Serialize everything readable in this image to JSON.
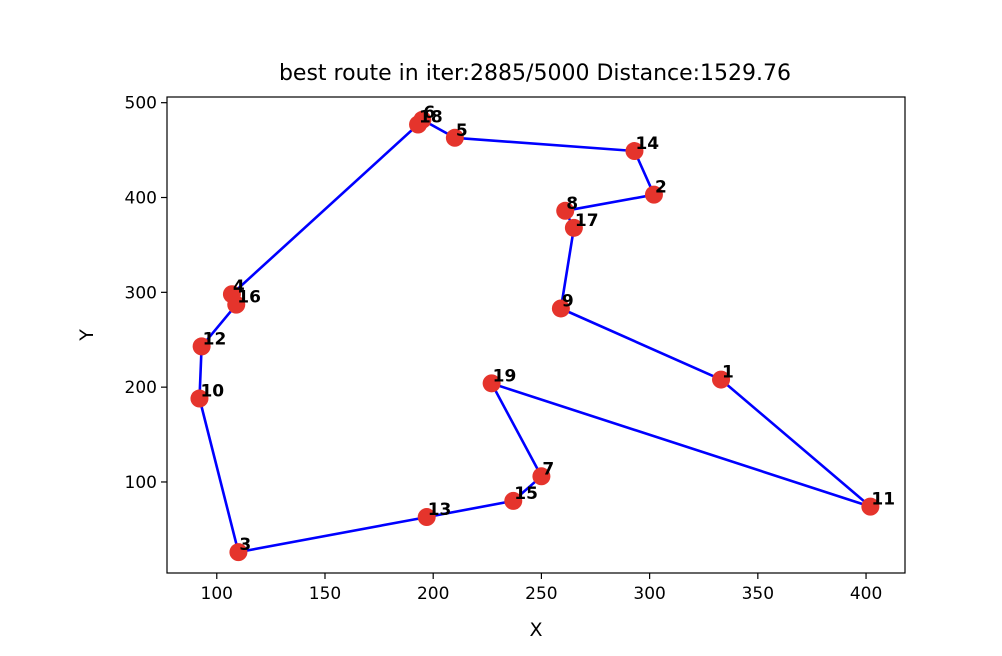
{
  "chart_data": {
    "type": "scatter",
    "title": "best route in iter:2885/5000 Distance:1529.76",
    "xlabel": "X",
    "ylabel": "Y",
    "xlim": [
      77,
      418
    ],
    "ylim": [
      4,
      506
    ],
    "xticks": [
      100,
      150,
      200,
      250,
      300,
      350,
      400
    ],
    "yticks": [
      100,
      200,
      300,
      400,
      500
    ],
    "grid": false,
    "marker_color": "#e5342c",
    "line_color": "#0000ff",
    "points": [
      {
        "id": "1",
        "x": 333,
        "y": 208
      },
      {
        "id": "2",
        "x": 302,
        "y": 403
      },
      {
        "id": "3",
        "x": 110,
        "y": 26
      },
      {
        "id": "4",
        "x": 107,
        "y": 298
      },
      {
        "id": "5",
        "x": 210,
        "y": 463
      },
      {
        "id": "6",
        "x": 195,
        "y": 482
      },
      {
        "id": "7",
        "x": 250,
        "y": 106
      },
      {
        "id": "8",
        "x": 261,
        "y": 386
      },
      {
        "id": "9",
        "x": 259,
        "y": 283
      },
      {
        "id": "10",
        "x": 92,
        "y": 188
      },
      {
        "id": "11",
        "x": 402,
        "y": 74
      },
      {
        "id": "12",
        "x": 93,
        "y": 243
      },
      {
        "id": "13",
        "x": 197,
        "y": 63
      },
      {
        "id": "14",
        "x": 293,
        "y": 449
      },
      {
        "id": "15",
        "x": 237,
        "y": 80
      },
      {
        "id": "16",
        "x": 109,
        "y": 287
      },
      {
        "id": "17",
        "x": 265,
        "y": 368
      },
      {
        "id": "18",
        "x": 193,
        "y": 477
      },
      {
        "id": "19",
        "x": 227,
        "y": 204
      }
    ],
    "route": [
      "6",
      "5",
      "14",
      "2",
      "8",
      "17",
      "9",
      "1",
      "11",
      "19",
      "7",
      "15",
      "13",
      "3",
      "10",
      "12",
      "16",
      "4",
      "18",
      "6"
    ]
  }
}
